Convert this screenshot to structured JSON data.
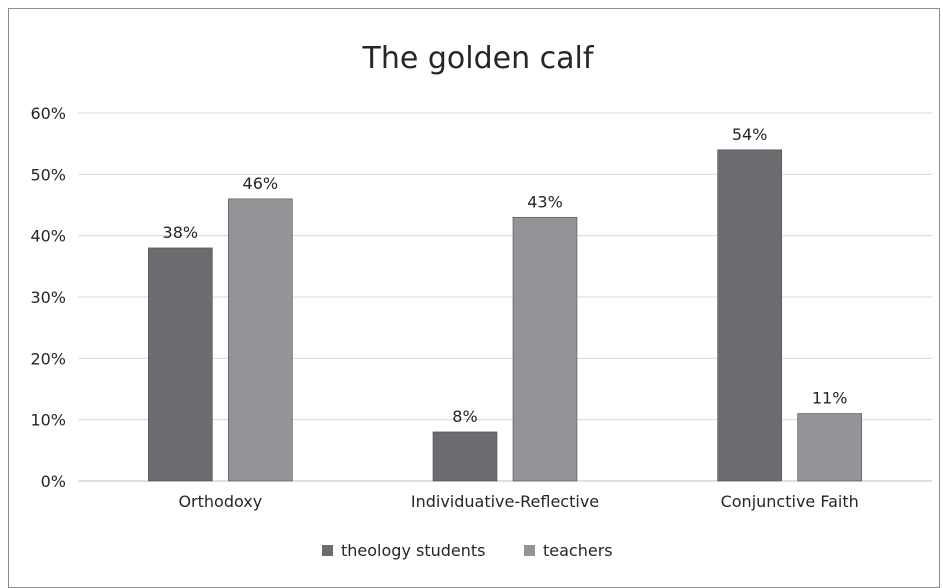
{
  "chart_data": {
    "type": "bar",
    "title": "The golden calf",
    "categories": [
      "Orthodoxy",
      "Individuative-Reflective",
      "Conjunctive Faith"
    ],
    "series": [
      {
        "name": "theology students",
        "values": [
          38,
          8,
          54
        ],
        "color": "#6b6c70"
      },
      {
        "name": "teachers",
        "values": [
          46,
          43,
          11
        ],
        "color": "#939498"
      }
    ],
    "ylim": [
      0,
      60
    ],
    "yticks": [
      "0%",
      "10%",
      "20%",
      "30%",
      "40%",
      "50%",
      "60%"
    ],
    "value_suffix": "%",
    "grid": true,
    "legend": "bottom"
  }
}
